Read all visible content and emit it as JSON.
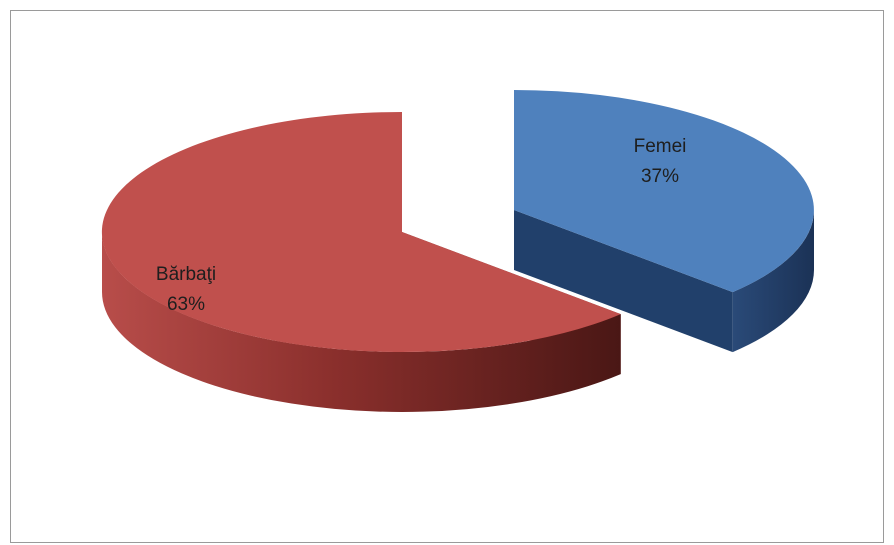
{
  "chart_data": {
    "type": "pie",
    "style": "3d-exploded",
    "categories": [
      "Femei",
      "Bărbaţi"
    ],
    "values": [
      37,
      63
    ],
    "labels": [
      {
        "name": "Femei",
        "percent": "37%"
      },
      {
        "name": "Bărbaţi",
        "percent": "63%"
      }
    ],
    "colors": {
      "Femei": "#4f81bd",
      "Bărbaţi": "#c0504d"
    },
    "title": "",
    "legend": "none"
  }
}
